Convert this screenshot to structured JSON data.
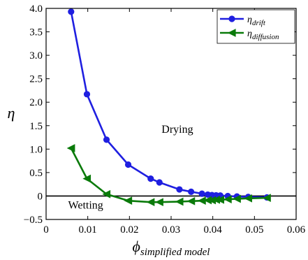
{
  "chart_data": {
    "type": "line",
    "xlabel": "ϕ",
    "xlabel_sub": "simplified model",
    "ylabel": "η",
    "xlim": [
      0,
      0.06
    ],
    "ylim": [
      -0.5,
      4.0
    ],
    "x_ticks": [
      0,
      0.01,
      0.02,
      0.03,
      0.04,
      0.05,
      0.06
    ],
    "x_tick_labels": [
      "0",
      "0.01",
      "0.02",
      "0.03",
      "0.04",
      "0.05",
      "0.06"
    ],
    "y_ticks": [
      -0.5,
      0,
      0.5,
      1.0,
      1.5,
      2.0,
      2.5,
      3.0,
      3.5,
      4.0
    ],
    "y_tick_labels": [
      "−0.5",
      "0",
      "0.5",
      "1.0",
      "1.5",
      "2.0",
      "2.5",
      "3.0",
      "3.5",
      "4.0"
    ],
    "reference_line_y": 0,
    "legend_position": "top-right",
    "annotations": [
      {
        "text": "Drying",
        "x": 0.0315,
        "y": 1.35
      },
      {
        "text": "Wetting",
        "x": 0.0095,
        "y": -0.27
      }
    ],
    "series": [
      {
        "name": "η",
        "name_sub": "drift",
        "color": "#1f1fe0",
        "marker": "circle",
        "x": [
          0.006,
          0.0098,
          0.0145,
          0.0197,
          0.0251,
          0.0272,
          0.032,
          0.0348,
          0.0374,
          0.0388,
          0.0398,
          0.0408,
          0.0418,
          0.0436,
          0.0458,
          0.0485,
          0.053
        ],
        "y": [
          3.93,
          2.17,
          1.2,
          0.67,
          0.37,
          0.29,
          0.14,
          0.09,
          0.05,
          0.03,
          0.02,
          0.015,
          0.01,
          0.0,
          -0.01,
          -0.02,
          -0.03
        ]
      },
      {
        "name": "η",
        "name_sub": "diffusion",
        "color": "#0a7a0a",
        "marker": "triangle-left",
        "x": [
          0.006,
          0.0098,
          0.0145,
          0.0197,
          0.0251,
          0.0272,
          0.032,
          0.0348,
          0.0374,
          0.0388,
          0.0398,
          0.0408,
          0.0418,
          0.0436,
          0.0458,
          0.0485,
          0.053
        ],
        "y": [
          1.02,
          0.37,
          0.04,
          -0.1,
          -0.13,
          -0.13,
          -0.12,
          -0.11,
          -0.1,
          -0.09,
          -0.09,
          -0.08,
          -0.08,
          -0.07,
          -0.06,
          -0.05,
          -0.04
        ]
      }
    ]
  }
}
